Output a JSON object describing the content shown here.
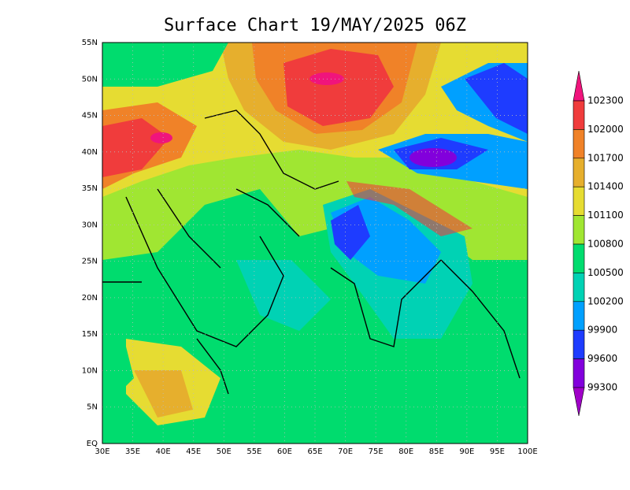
{
  "title": "Surface Chart 19/MAY/2025 06Z",
  "lat_labels": [
    "EQ",
    "5N",
    "10N",
    "15N",
    "20N",
    "25N",
    "30N",
    "35N",
    "40N",
    "45N",
    "50N",
    "55N"
  ],
  "lon_labels": [
    "30E",
    "35E",
    "40E",
    "45E",
    "50E",
    "55E",
    "60E",
    "65E",
    "70E",
    "75E",
    "80E",
    "85E",
    "90E",
    "95E",
    "100E"
  ],
  "colorbar": {
    "labels": [
      "102300",
      "102000",
      "101700",
      "101400",
      "101100",
      "100800",
      "100500",
      "100200",
      "99900",
      "99600",
      "99300"
    ],
    "colors": [
      "#f0147c",
      "#f03c3c",
      "#f08228",
      "#e6af2d",
      "#e6dc32",
      "#a0e632",
      "#00dc6e",
      "#00d2b4",
      "#00a0ff",
      "#1e3cff",
      "#8200dc",
      "#a000c8"
    ]
  }
}
